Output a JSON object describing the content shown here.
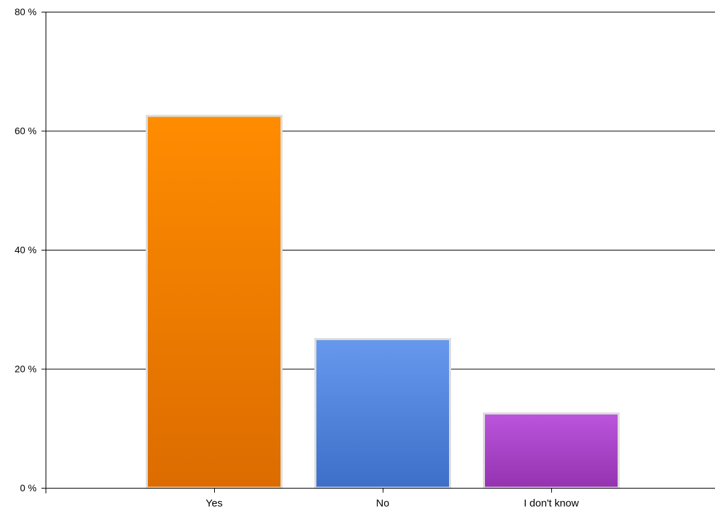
{
  "chart_data": {
    "type": "bar",
    "title": "",
    "xlabel": "",
    "ylabel": "",
    "categories": [
      "Yes",
      "No",
      "I don't know"
    ],
    "values": [
      62.5,
      25,
      12.5
    ],
    "ylim": [
      0,
      80
    ],
    "yticks": [
      0,
      20,
      40,
      60,
      80
    ],
    "ytick_labels": [
      "0 %",
      "20 %",
      "40 %",
      "60 %",
      "80 %"
    ],
    "grid": true,
    "legend": "none",
    "colors": [
      {
        "top": "#ff8c00",
        "bottom": "#dc6c00"
      },
      {
        "top": "#6699ee",
        "bottom": "#3d6fc8"
      },
      {
        "top": "#bb55dd",
        "bottom": "#9433b0"
      }
    ],
    "bar_border_color": "#dddddd"
  }
}
